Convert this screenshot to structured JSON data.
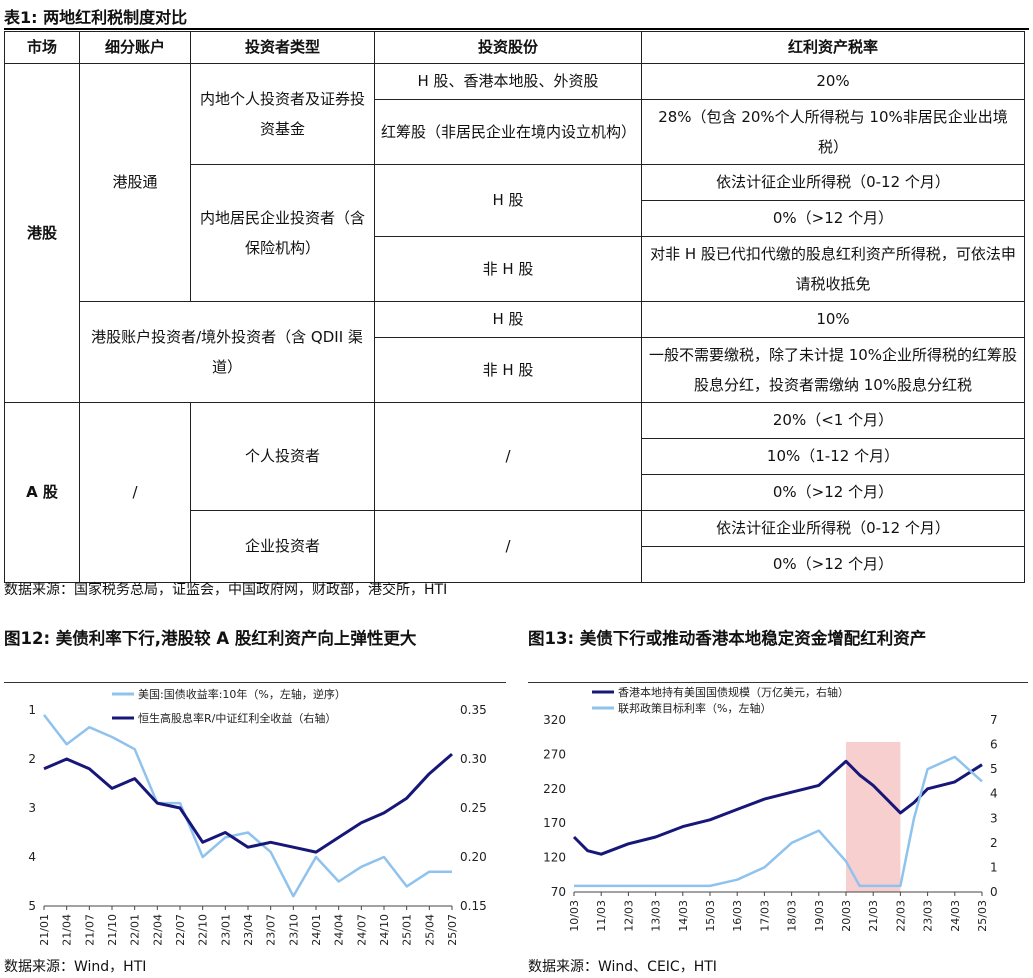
{
  "table": {
    "title": "表1:  两地红利税制度对比",
    "headers": [
      "市场",
      "细分账户",
      "投资者类型",
      "投资股份",
      "红利资产税率"
    ],
    "hk_market": "港股",
    "a_market": "A 股",
    "account_sc": "港股通",
    "account_hk": "港股账户投资者/境外投资者（含 QDII 渠道）",
    "account_a": "/",
    "inv_individual_fund": "内地个人投资者及证券投资基金",
    "inv_enterprise": "内地居民企业投资者（含保险机构）",
    "inv_a_individual": "个人投资者",
    "inv_a_enterprise": "企业投资者",
    "share_h_local": "H 股、香港本地股、外资股",
    "share_red_chip": "红筹股（非居民企业在境内设立机构）",
    "share_h": "H 股",
    "share_non_h": "非 H 股",
    "share_slash": "/",
    "rate_20": "20%",
    "rate_28": "28%（包含 20%个人所得税与 10%非居民企业出境税）",
    "rate_ent_0_12": "依法计征企业所得税（0-12 个月）",
    "rate_0_gt12": "0%（>12 个月）",
    "rate_non_h_ent": "对非 H 股已代扣代缴的股息红利资产所得税，可依法申请税收抵免",
    "rate_10": "10%",
    "rate_hk_non_h": "一般不需要缴税，除了未计提 10%企业所得税的红筹股股息分红，投资者需缴纳 10%股息分红税",
    "rate_lt1": "20%（<1 个月）",
    "rate_1_12": "10%（1-12 个月）",
    "source": "数据来源：国家税务总局，证监会，中国政府网，财政部，港交所，HTI"
  },
  "fig12": {
    "title": "图12:  美债利率下行,港股较 A 股红利资产向上弹性更大",
    "source": "数据来源：Wind，HTI"
  },
  "fig13": {
    "title": "图13:  美债下行或推动香港本地稳定资金增配红利资产",
    "source": "数据来源：Wind、CEIC，HTI"
  },
  "chart_data": [
    {
      "type": "line",
      "legend_placement": "top",
      "series": [
        {
          "name": "美国:国债收益率:10年（%，左轴，逆序）",
          "color": "#8fc3ee",
          "axis": "left",
          "x": [
            "21/01",
            "21/04",
            "21/07",
            "21/10",
            "22/01",
            "22/04",
            "22/07",
            "22/10",
            "23/01",
            "23/04",
            "23/07",
            "23/10",
            "24/01",
            "24/04",
            "24/07",
            "24/10",
            "25/01",
            "25/04",
            "25/07"
          ],
          "values": [
            1.1,
            1.7,
            1.35,
            1.55,
            1.8,
            2.9,
            2.9,
            4.0,
            3.6,
            3.5,
            3.9,
            4.8,
            4.0,
            4.5,
            4.2,
            4.0,
            4.6,
            4.3,
            4.3
          ]
        },
        {
          "name": "恒生高股息率R/中证红利全收益（右轴）",
          "color": "#17177a",
          "axis": "right",
          "x": [
            "21/01",
            "21/04",
            "21/07",
            "21/10",
            "22/01",
            "22/04",
            "22/07",
            "22/10",
            "23/01",
            "23/04",
            "23/07",
            "23/10",
            "24/01",
            "24/04",
            "24/07",
            "24/10",
            "25/01",
            "25/04",
            "25/07"
          ],
          "values": [
            0.29,
            0.3,
            0.29,
            0.27,
            0.28,
            0.255,
            0.25,
            0.215,
            0.225,
            0.21,
            0.215,
            0.21,
            0.205,
            0.22,
            0.235,
            0.245,
            0.26,
            0.285,
            0.305
          ]
        }
      ],
      "x_ticks": [
        "21/01",
        "21/04",
        "21/07",
        "21/10",
        "22/01",
        "22/04",
        "22/07",
        "22/10",
        "23/01",
        "23/04",
        "23/07",
        "23/10",
        "24/01",
        "24/04",
        "24/07",
        "24/10",
        "25/01",
        "25/04",
        "25/07"
      ],
      "left_axis": {
        "ticks": [
          "1",
          "2",
          "3",
          "4",
          "5"
        ],
        "range": [
          1,
          5
        ],
        "reversed": true
      },
      "right_axis": {
        "ticks": [
          "0.35",
          "0.30",
          "0.25",
          "0.20",
          "0.15"
        ],
        "range": [
          0.15,
          0.35
        ]
      }
    },
    {
      "type": "line",
      "legend_placement": "top",
      "series": [
        {
          "name": "香港本地持有美国国债规模（万亿美元，右轴）",
          "color": "#17177a",
          "axis": "left",
          "x": [
            "10/03",
            "10/09",
            "11/03",
            "12/03",
            "13/03",
            "14/03",
            "15/03",
            "16/03",
            "17/03",
            "18/03",
            "19/03",
            "20/03",
            "20/09",
            "21/03",
            "22/03",
            "22/09",
            "23/03",
            "24/03",
            "25/03"
          ],
          "values": [
            150,
            130,
            125,
            140,
            150,
            165,
            175,
            190,
            205,
            215,
            225,
            260,
            240,
            225,
            185,
            200,
            220,
            230,
            255
          ]
        },
        {
          "name": "联邦政策目标利率（%，左轴）",
          "color": "#8fc3ee",
          "axis": "right",
          "x": [
            "10/03",
            "10/09",
            "11/03",
            "12/03",
            "13/03",
            "14/03",
            "15/03",
            "16/03",
            "17/03",
            "18/03",
            "19/03",
            "20/03",
            "20/09",
            "21/03",
            "22/03",
            "22/09",
            "23/03",
            "24/03",
            "25/03"
          ],
          "values": [
            0.25,
            0.25,
            0.25,
            0.25,
            0.25,
            0.25,
            0.25,
            0.5,
            1.0,
            2.0,
            2.5,
            1.25,
            0.25,
            0.25,
            0.25,
            3.0,
            5.0,
            5.5,
            4.5
          ]
        }
      ],
      "x_ticks": [
        "10/03",
        "11/03",
        "12/03",
        "13/03",
        "14/03",
        "15/03",
        "16/03",
        "17/03",
        "18/03",
        "19/03",
        "20/03",
        "21/03",
        "22/03",
        "23/03",
        "24/03",
        "25/03"
      ],
      "left_axis": {
        "ticks": [
          "320",
          "270",
          "220",
          "170",
          "120",
          "70"
        ],
        "range": [
          70,
          320
        ]
      },
      "right_axis": {
        "ticks": [
          "7",
          "6",
          "5",
          "4",
          "3",
          "2",
          "1",
          "0"
        ],
        "range": [
          0,
          7
        ]
      },
      "shaded_region": {
        "from": "20/03",
        "to": "22/03",
        "color": "#f7cfcf"
      }
    }
  ]
}
